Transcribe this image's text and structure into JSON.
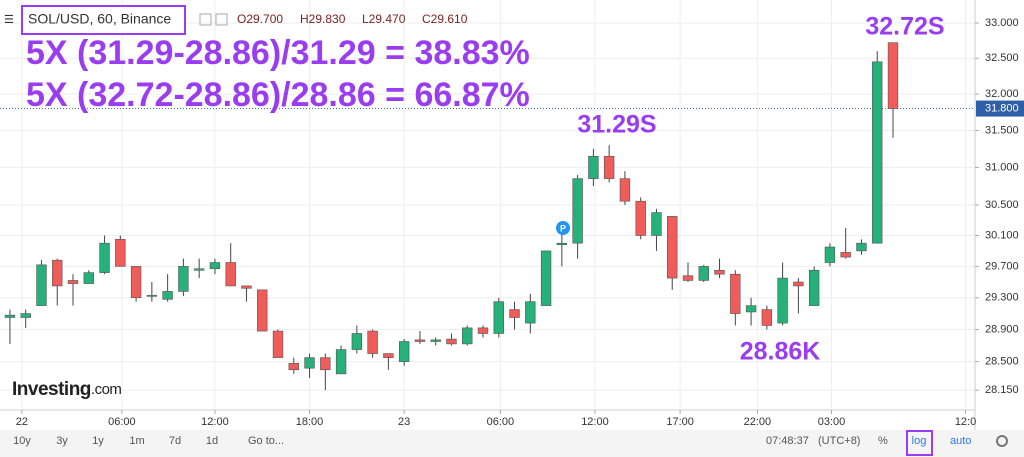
{
  "chart_data": {
    "type": "candlestick",
    "header": {
      "symbol": "SOL/USD, 60, Binance",
      "open": "O29.700",
      "high": "H29.830",
      "low": "L29.470",
      "close": "C29.610"
    },
    "annotations": [
      "5X (31.29-28.86)/31.29 = 38.83%",
      "5X (32.72-28.86)/28.86 = 66.87%",
      "31.29S",
      "28.86K",
      "32.72S"
    ],
    "marker_label": "P",
    "logo": {
      "main": "Investing",
      "suffix": ".com"
    },
    "x": [
      0,
      1,
      2,
      3,
      4,
      5,
      6,
      7,
      8,
      9,
      10,
      11,
      12,
      13,
      14,
      15,
      16,
      17,
      18,
      19,
      20,
      21,
      22,
      23,
      24,
      25,
      26,
      27,
      28,
      29,
      30,
      31,
      32,
      33,
      34,
      35,
      36,
      37,
      38,
      39,
      40,
      41,
      42,
      43,
      44,
      45,
      46,
      47,
      48,
      49,
      50,
      51,
      52,
      53,
      54,
      55,
      56
    ],
    "open": [
      29.05,
      29.05,
      29.2,
      29.78,
      29.52,
      29.48,
      29.62,
      30.05,
      29.7,
      29.32,
      29.28,
      29.38,
      29.65,
      29.67,
      29.75,
      29.45,
      29.4,
      28.88,
      28.48,
      28.42,
      28.55,
      28.35,
      28.65,
      28.88,
      28.6,
      28.5,
      28.77,
      28.75,
      28.78,
      28.72,
      28.92,
      28.85,
      29.15,
      28.98,
      29.2,
      29.98,
      30.0,
      30.85,
      31.15,
      30.85,
      30.55,
      30.1,
      30.35,
      29.58,
      29.52,
      29.65,
      29.6,
      29.12,
      29.15,
      28.98,
      29.5,
      29.2,
      29.75,
      29.88,
      29.9,
      30.0,
      32.72
    ],
    "high": [
      29.15,
      29.15,
      29.78,
      29.8,
      29.6,
      29.65,
      30.1,
      30.1,
      29.7,
      29.5,
      29.6,
      29.8,
      29.8,
      29.8,
      30.0,
      29.45,
      29.4,
      28.9,
      28.55,
      28.6,
      28.6,
      28.7,
      28.95,
      28.9,
      28.6,
      28.78,
      28.88,
      28.8,
      28.85,
      28.95,
      28.95,
      29.3,
      29.25,
      29.35,
      29.9,
      30.15,
      30.9,
      31.25,
      31.3,
      30.95,
      30.6,
      30.45,
      30.35,
      29.75,
      29.72,
      29.8,
      29.65,
      29.3,
      29.2,
      29.75,
      29.55,
      29.7,
      30.0,
      30.2,
      30.05,
      32.6,
      32.72
    ],
    "low": [
      28.72,
      28.92,
      29.2,
      29.2,
      29.2,
      29.48,
      29.6,
      29.7,
      29.25,
      29.25,
      29.25,
      29.32,
      29.55,
      29.6,
      29.45,
      29.25,
      28.88,
      28.55,
      28.35,
      28.3,
      28.15,
      28.35,
      28.6,
      28.55,
      28.4,
      28.45,
      28.72,
      28.7,
      28.7,
      28.7,
      28.8,
      28.8,
      28.9,
      28.85,
      29.2,
      29.7,
      29.8,
      30.75,
      30.8,
      30.5,
      30.05,
      29.9,
      29.4,
      29.5,
      29.5,
      29.55,
      28.95,
      28.95,
      28.9,
      28.95,
      29.1,
      29.2,
      29.7,
      29.8,
      29.85,
      30.0,
      31.4
    ],
    "close": [
      29.08,
      29.1,
      29.72,
      29.45,
      29.48,
      29.62,
      30.0,
      29.7,
      29.3,
      29.33,
      29.38,
      29.7,
      29.67,
      29.75,
      29.45,
      29.42,
      28.88,
      28.55,
      28.4,
      28.55,
      28.4,
      28.65,
      28.85,
      28.6,
      28.55,
      28.75,
      28.75,
      28.77,
      28.72,
      28.92,
      28.85,
      29.25,
      29.05,
      29.25,
      29.9,
      30.0,
      30.85,
      31.15,
      30.85,
      30.55,
      30.1,
      30.4,
      29.55,
      29.52,
      29.7,
      29.6,
      29.1,
      29.2,
      28.95,
      29.55,
      29.45,
      29.65,
      29.95,
      29.82,
      30.0,
      32.45,
      31.8
    ],
    "up_color": "#26b07a",
    "down_color": "#ef5c5a",
    "log_scale": true,
    "grid": true,
    "xlim": [
      -0.63,
      61.2
    ],
    "xticks": [
      {
        "value": 0.76,
        "label": "22"
      },
      {
        "value": 7.1,
        "label": "06:00"
      },
      {
        "value": 13,
        "label": "12:00"
      },
      {
        "value": 19,
        "label": "18:00"
      },
      {
        "value": 25,
        "label": "23"
      },
      {
        "value": 31.1,
        "label": "06:00"
      },
      {
        "value": 37.1,
        "label": "12:00"
      },
      {
        "value": 42.5,
        "label": "17:00"
      },
      {
        "value": 47.4,
        "label": "22:00"
      },
      {
        "value": 52.1,
        "label": "03:00"
      },
      {
        "value": 60.6,
        "label": "12:0"
      }
    ],
    "ylim": [
      27.91,
      33.33
    ],
    "yticks": [
      {
        "value": 33,
        "label": "33.000"
      },
      {
        "value": 32.5,
        "label": "32.500"
      },
      {
        "value": 32,
        "label": "32.000"
      },
      {
        "value": 31.5,
        "label": "31.500"
      },
      {
        "value": 31,
        "label": "31.000"
      },
      {
        "value": 30.5,
        "label": "30.500"
      },
      {
        "value": 30.1,
        "label": "30.100"
      },
      {
        "value": 29.7,
        "label": "29.700"
      },
      {
        "value": 29.3,
        "label": "29.300"
      },
      {
        "value": 28.9,
        "label": "28.900"
      },
      {
        "value": 28.5,
        "label": "28.500"
      },
      {
        "value": 28.15,
        "label": "28.150"
      }
    ],
    "last_price": {
      "value": 31.8,
      "label": "31.800"
    },
    "toolbar": {
      "ranges": [
        "10y",
        "3y",
        "1y",
        "1m",
        "7d",
        "1d"
      ],
      "goto": "Go to...",
      "time": "07:48:37",
      "timezone": "(UTC+8)",
      "percent": "%",
      "log": "log",
      "auto": "auto"
    }
  }
}
